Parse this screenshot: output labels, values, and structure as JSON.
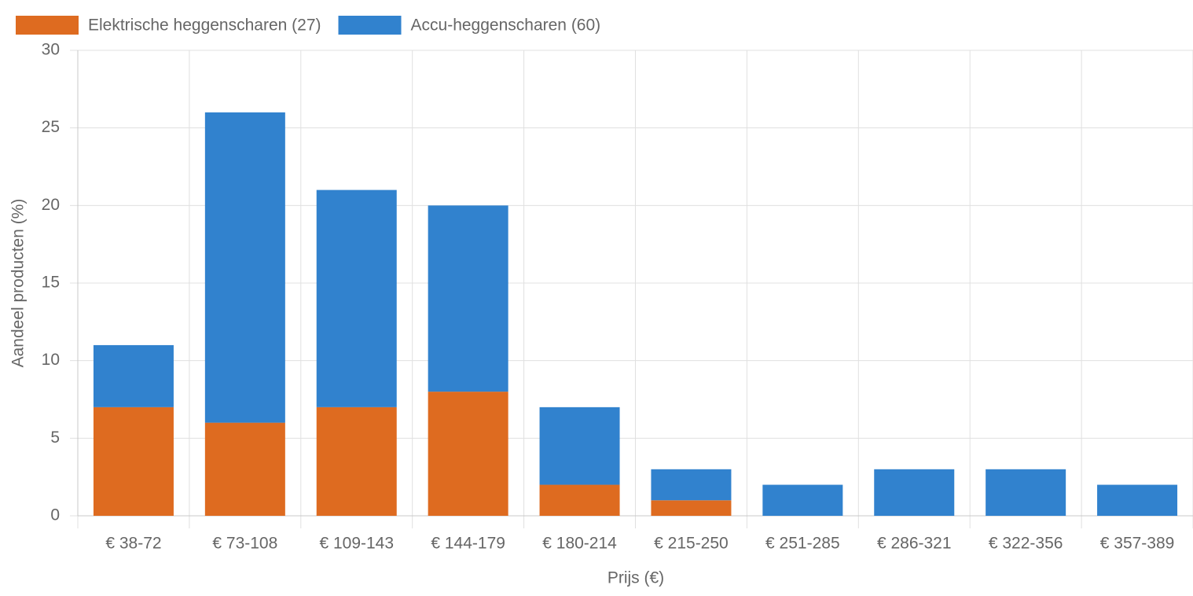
{
  "chart_data": {
    "type": "bar",
    "stacked": true,
    "grid": true,
    "legend": "top-left",
    "xlabel": "Prijs (€)",
    "ylabel": "Aandeel producten (%)",
    "categories": [
      "€ 38-72",
      "€ 73-108",
      "€ 109-143",
      "€ 144-179",
      "€ 180-214",
      "€ 215-250",
      "€ 251-285",
      "€ 286-321",
      "€ 322-356",
      "€ 357-389"
    ],
    "series": [
      {
        "name": "Elektrische heggenscharen (27)",
        "color": "#de6b20",
        "values": [
          7,
          6,
          7,
          8,
          2,
          1,
          0,
          0,
          0,
          0
        ]
      },
      {
        "name": "Accu-heggenscharen (60)",
        "color": "#3182ce",
        "values": [
          4,
          20,
          14,
          12,
          5,
          2,
          2,
          3,
          3,
          2
        ]
      }
    ],
    "ylim": [
      0,
      30
    ],
    "yticks": [
      0,
      5,
      10,
      15,
      20,
      25,
      30
    ]
  }
}
